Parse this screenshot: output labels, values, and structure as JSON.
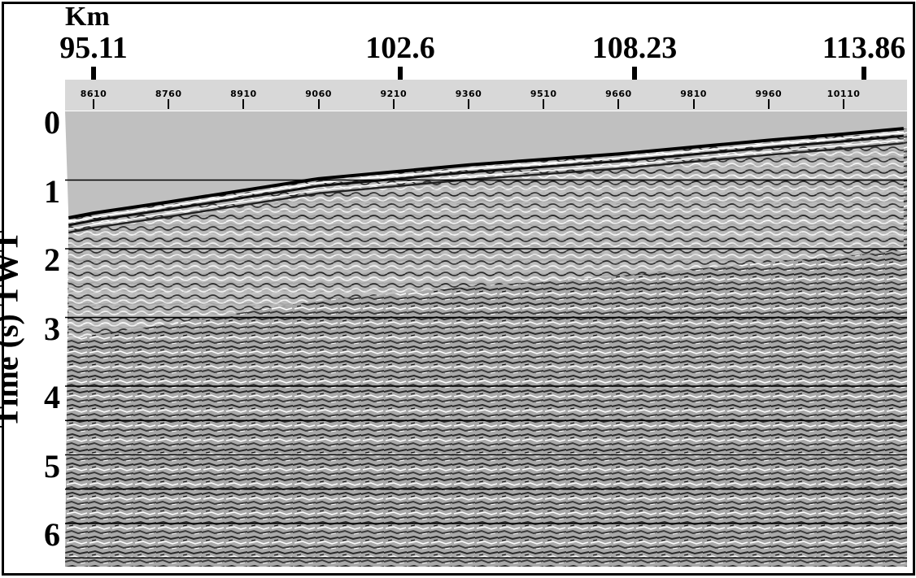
{
  "chart_data": {
    "type": "seismic-section",
    "top_axis_unit": "Km",
    "km_ticks": [
      "95.11",
      "102.6",
      "108.23",
      "113.86"
    ],
    "cdp_ticks": [
      "8610",
      "8760",
      "8910",
      "9060",
      "9210",
      "9360",
      "9510",
      "9660",
      "9810",
      "9960",
      "10110"
    ],
    "ylabel": "Time (s) TWT",
    "y_ticks": [
      "0",
      "1",
      "2",
      "3",
      "4",
      "5",
      "6"
    ],
    "ylim": [
      0,
      6.5
    ],
    "seafloor_twt_s": {
      "x_cdp": [
        8560,
        8610,
        8760,
        8910,
        9060,
        9210,
        9360,
        9510,
        9660,
        9810,
        9960,
        10110,
        10230
      ],
      "t": [
        1.55,
        1.48,
        1.32,
        1.15,
        0.98,
        0.88,
        0.78,
        0.7,
        0.62,
        0.52,
        0.42,
        0.33,
        0.25
      ]
    },
    "horizontal_lines_s": [
      1,
      2,
      3,
      4,
      4.5,
      5,
      5.5,
      6,
      6.5
    ],
    "colors": {
      "water": "#c0c0c0",
      "strip": "#d8d8d8",
      "frame": "#000000"
    }
  }
}
